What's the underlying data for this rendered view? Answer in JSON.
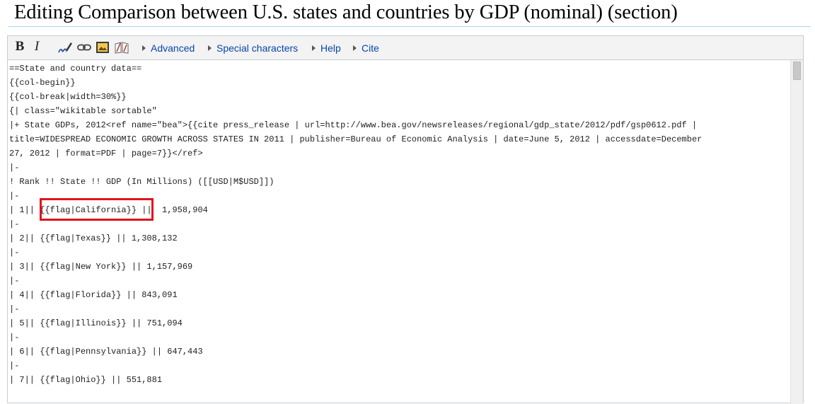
{
  "page": {
    "title": "Editing Comparison between U.S. states and countries by GDP (nominal) (section)"
  },
  "toolbar": {
    "bold_label": "B",
    "italic_label": "I",
    "icons": [
      "signature-icon",
      "link-icon",
      "embedded-file-icon",
      "reference-icon"
    ],
    "links": [
      {
        "label": "Advanced"
      },
      {
        "label": "Special characters"
      },
      {
        "label": "Help"
      },
      {
        "label": "Cite"
      }
    ]
  },
  "editor": {
    "lines": [
      "==State and country data==",
      "{{col-begin}}",
      "{{col-break|width=30%}}",
      "{| class=\"wikitable sortable\"",
      "|+ State GDPs, 2012<ref name=\"bea\">{{cite press_release | url=http://www.bea.gov/newsreleases/regional/gdp_state/2012/pdf/gsp0612.pdf |",
      "title=WIDESPREAD ECONOMIC GROWTH ACROSS STATES IN 2011 | publisher=Bureau of Economic Analysis | date=June 5, 2012 | accessdate=December",
      "27, 2012 | format=PDF | page=7}}</ref>",
      "|-",
      "! Rank !! State !! GDP (In Millions) ([[USD|M$USD]])",
      "|-",
      "| 1|| {{flag|California}} ||  1,958,904",
      "|-",
      "| 2|| {{flag|Texas}} || 1,308,132",
      "|-",
      "| 3|| {{flag|New York}} || 1,157,969",
      "|-",
      "| 4|| {{flag|Florida}} || 843,091",
      "|-",
      "| 5|| {{flag|Illinois}} || 751,094",
      "|-",
      "| 6|| {{flag|Pennsylvania}} || 647,443",
      "|-",
      "| 7|| {{flag|Ohio}} || 551,881"
    ]
  },
  "colors": {
    "highlight": "#e0141e",
    "link": "#0645ad"
  }
}
